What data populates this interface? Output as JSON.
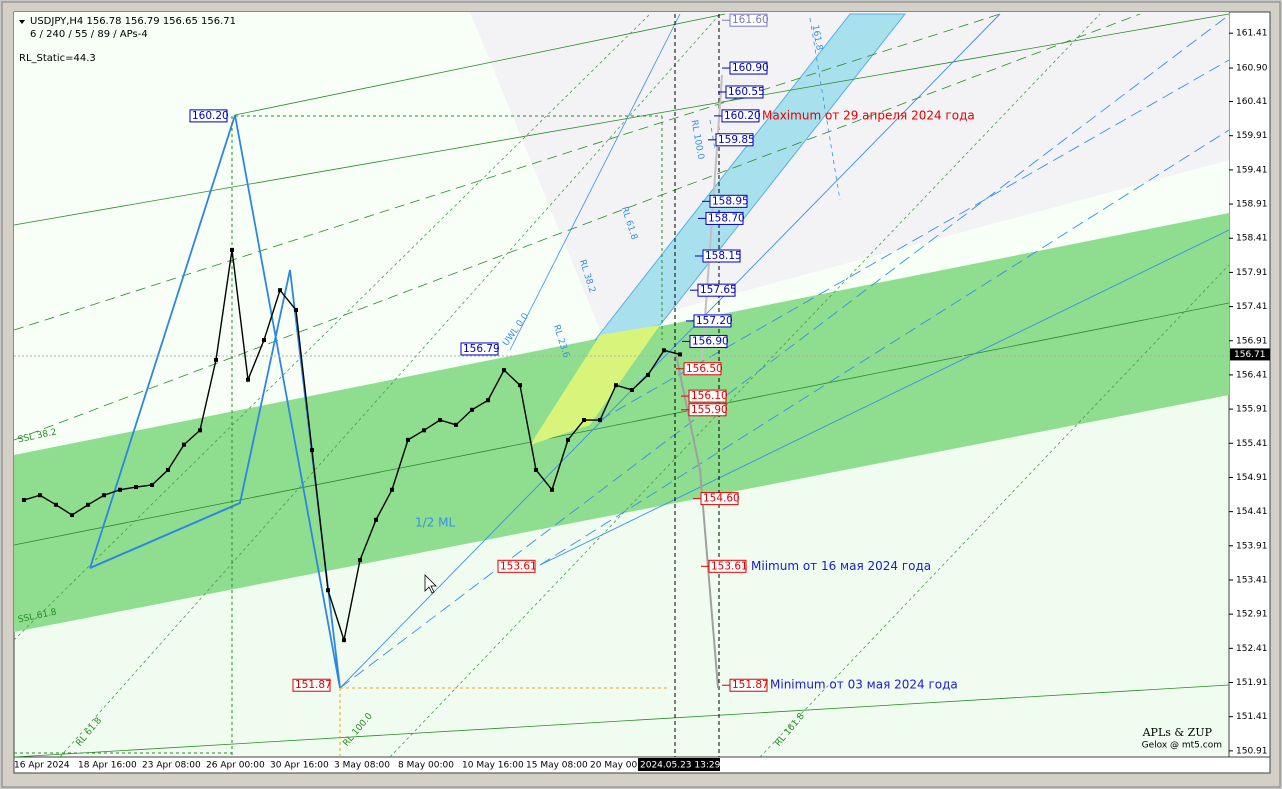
{
  "header": {
    "symbol_line": "USDJPY,H4  156.78 156.79 156.65 156.71",
    "params": "6 / 240 / 55 / 89 / APs-4",
    "static": "RL_Static=44.3"
  },
  "chart_data": {
    "type": "line",
    "color": "#000000",
    "categories": [
      null,
      "16 Apr 2024",
      null,
      null,
      null,
      "18 Apr 16:00",
      null,
      null,
      null,
      "23 Apr 08:00",
      null,
      null,
      null,
      "26 Apr 00:00",
      null,
      null,
      null,
      "30 Apr 16:00",
      null,
      null,
      null,
      "3 May 08:00",
      null,
      null,
      null,
      "8 May 00:00",
      null,
      null,
      null,
      "10 May 16:00",
      null,
      null,
      null,
      "15 May 08:00",
      null,
      null,
      null,
      "20 May 00",
      null,
      null,
      null,
      "2024.05.23 13:29"
    ],
    "values": [
      154.58,
      154.65,
      154.51,
      154.36,
      154.51,
      154.65,
      154.73,
      154.77,
      154.8,
      155.02,
      155.39,
      155.6,
      156.63,
      158.24,
      156.34,
      156.92,
      157.65,
      157.36,
      155.31,
      153.26,
      152.53,
      153.7,
      154.29,
      154.73,
      155.46,
      155.6,
      155.75,
      155.68,
      155.9,
      156.04,
      156.48,
      156.26,
      155.02,
      154.73,
      155.46,
      155.75,
      155.75,
      156.26,
      156.19,
      156.41,
      156.77,
      156.71
    ],
    "ylim": [
      150.82,
      161.72
    ],
    "yticks": [
      161.41,
      {
        "value": 160.9,
        "label": "160.90"
      },
      160.41,
      159.91,
      159.41,
      158.91,
      158.41,
      157.91,
      157.41,
      156.91,
      156.41,
      155.91,
      155.41,
      154.91,
      154.41,
      153.91,
      153.41,
      152.91,
      152.41,
      151.91,
      151.41,
      150.91
    ],
    "current": 156.71,
    "levels": [
      {
        "value": 161.6,
        "label": "161.60",
        "color": "#7a7ac8"
      },
      {
        "value": 160.9,
        "label": "160.90",
        "color": "#0000c0"
      },
      {
        "value": 160.55,
        "label": "160.55",
        "color": "#0000c0"
      },
      {
        "value": 160.2,
        "label": "160.20",
        "color": "#0000c0",
        "note": "Maximum от 29 апреля 2024 года",
        "note_color": "#e00000"
      },
      {
        "value": 159.85,
        "label": "159.85",
        "color": "#0000c0"
      },
      {
        "value": 158.95,
        "label": "158.95",
        "color": "#0000c0"
      },
      {
        "value": 158.7,
        "label": "158.70",
        "color": "#0000c0"
      },
      {
        "value": 158.15,
        "label": "158.15",
        "color": "#0000c0"
      },
      {
        "value": 157.65,
        "label": "157.65",
        "color": "#0000c0"
      },
      {
        "value": 157.2,
        "label": "157.20",
        "color": "#0000c0"
      },
      {
        "value": 156.9,
        "label": "156.90",
        "color": "#0000c0"
      },
      {
        "value": 156.5,
        "label": "156.50",
        "color": "#e00000"
      },
      {
        "value": 156.1,
        "label": "156.10",
        "color": "#e00000"
      },
      {
        "value": 155.9,
        "label": "155.90",
        "color": "#e00000"
      },
      {
        "value": 154.6,
        "label": "154.60",
        "color": "#e00000"
      },
      {
        "value": 153.61,
        "label": "153.61",
        "color": "#e00000",
        "note": "Miimum от 16 мая 2024 года",
        "note_color": "#1a1ad0"
      },
      {
        "value": 151.87,
        "label": "151.87",
        "color": "#e00000",
        "note": "Minimum от 03 мая  2024 года",
        "note_color": "#1a1ad0"
      }
    ],
    "pivots": [
      {
        "value": 160.2,
        "label": "160.20",
        "color": "#0000c0"
      },
      {
        "value": 156.79,
        "label": "156.79",
        "color": "#0000c0"
      },
      {
        "value": 153.61,
        "label": "153.61",
        "color": "#e00000"
      },
      {
        "value": 151.87,
        "label": "151.87",
        "color": "#e00000"
      }
    ],
    "line_labels": [
      "1/2 ML",
      "SSL 38.2",
      "SSL 61.8",
      "RL 61.8",
      "RL 100.0",
      "RL 161.8",
      "UWL 0.0",
      "RL 23.6",
      "RL 38.2",
      "RL 61.8",
      "RL 100.0",
      "161.8"
    ]
  },
  "footer": {
    "brand": "APLs & ZUP",
    "site": "Gelox @ mt5.com"
  }
}
